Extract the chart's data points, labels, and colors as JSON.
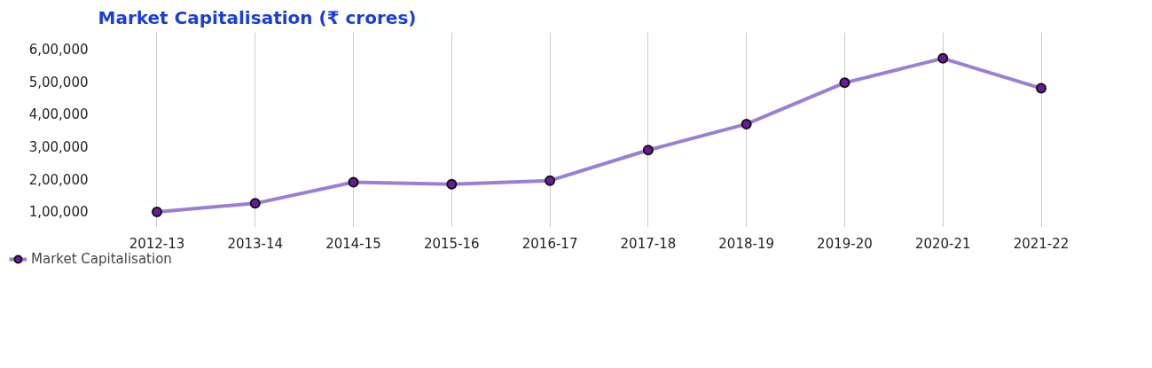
{
  "chart_data": {
    "type": "line",
    "title": "Market Capitalisation (₹ crores)",
    "categories": [
      "2012-13",
      "2013-14",
      "2014-15",
      "2015-16",
      "2016-17",
      "2017-18",
      "2018-19",
      "2019-20",
      "2020-21",
      "2021-22"
    ],
    "series": [
      {
        "name": "Market Capitalisation",
        "color": "#9b7fd4",
        "values": [
          98000,
          124000,
          189000,
          183000,
          194000,
          288000,
          368000,
          495000,
          570000,
          478000
        ]
      }
    ],
    "ylim": [
      50000,
      650000
    ],
    "yticks": [
      {
        "value": 100000,
        "label": "1,00,000"
      },
      {
        "value": 200000,
        "label": "2,00,000"
      },
      {
        "value": 300000,
        "label": "3,00,000"
      },
      {
        "value": 400000,
        "label": "4,00,000"
      },
      {
        "value": 500000,
        "label": "5,00,000"
      },
      {
        "value": 600000,
        "label": "6,00,000"
      }
    ],
    "grid": "x",
    "legend": "bottom left",
    "marker": "circle",
    "line_style": "solid"
  }
}
